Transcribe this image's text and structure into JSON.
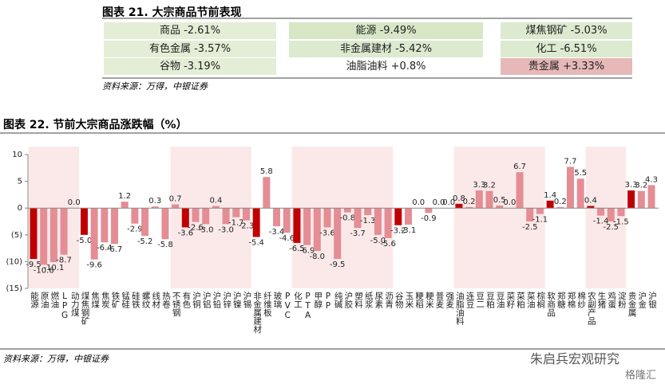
{
  "table_section": {
    "title": "图表 21. 大宗商品节前表现",
    "cells": [
      [
        {
          "text": "商品 -2.61%",
          "color": "#e4eed6"
        },
        {
          "text": "能源 -9.49%",
          "color": "#d7e7c6"
        },
        {
          "text": "煤焦钢矿 -5.03%",
          "color": "#dcead0"
        }
      ],
      [
        {
          "text": "有色金属 -3.57%",
          "color": "#e4eed6"
        },
        {
          "text": "非金属建材 -5.42%",
          "color": "#dcead0"
        },
        {
          "text": "化工 -6.51%",
          "color": "#dcead0"
        }
      ],
      [
        {
          "text": "谷物 -3.19%",
          "color": "#e4eed6"
        },
        {
          "text": "油脂油料 +0.8%",
          "color": "#ffffff"
        },
        {
          "text": "贵金属 +3.33%",
          "color": "#e6b8b8"
        }
      ]
    ],
    "source": "资料来源：万得，中银证券"
  },
  "chart_data": {
    "type": "bar",
    "title": "图表 22. 节前大宗商品涨跌幅（%）",
    "categories": [
      "能源",
      "原油",
      "燃油",
      "LPG",
      "动力煤",
      "煤焦钢矿",
      "焦煤",
      "焦炭",
      "铁矿",
      "锰硅",
      "硅铁",
      "螺纹",
      "线材",
      "热卷",
      "不锈钢",
      "有色",
      "沪铜",
      "沪铝",
      "沪铅",
      "沪锌",
      "沪镍",
      "沪锡",
      "非金属建材",
      "纤维板",
      "玻璃",
      "PVC",
      "化工",
      "PTA",
      "甲醇",
      "PP",
      "纯碱",
      "沪胶",
      "塑料",
      "纸浆",
      "尿素",
      "沥青",
      "谷物",
      "玉米",
      "粳稻",
      "粳米",
      "普麦",
      "强麦",
      "油脂油料",
      "连豆",
      "豆二",
      "豆粕",
      "豆油",
      "菜籽",
      "菜粕",
      "菜油",
      "棕榈",
      "软商品",
      "郑糖",
      "郑棉",
      "棉纱",
      "农副产品",
      "生猪",
      "鸡蛋",
      "淀粉",
      "贵金属",
      "沪金",
      "沪银"
    ],
    "values": [
      -9.5,
      -10.6,
      -10.1,
      -8.7,
      0.0,
      -5.0,
      -9.6,
      -6.4,
      -6.7,
      1.2,
      -2.9,
      -5.2,
      0.3,
      -5.8,
      0.7,
      -3.6,
      -2.6,
      -3.0,
      0.4,
      -3.0,
      -1.7,
      -2.3,
      -5.4,
      5.8,
      -3.4,
      -4.6,
      -6.5,
      -6.9,
      -8.0,
      -3.6,
      -9.5,
      -0.8,
      -3.7,
      -1.3,
      -5.0,
      -5.6,
      -3.2,
      -3.1,
      0.0,
      -0.9,
      0.0,
      0.0,
      0.8,
      0.2,
      3.3,
      3.2,
      0.5,
      0.0,
      6.7,
      -2.5,
      -1.1,
      1.4,
      0.2,
      7.7,
      5.5,
      0.4,
      -1.4,
      -2.5,
      -1.5,
      3.3,
      3.2,
      4.3
    ],
    "value_labels": [
      "-9.5",
      "-10.6",
      "-10.1",
      "-8.7",
      "0.0",
      "-5.0",
      "-9.6",
      "-6.4",
      "-6.7",
      "1.2",
      "-2.9",
      "-5.2",
      "0.3",
      "-5.8",
      "0.7",
      "-3.6",
      "-2.6",
      "-3.0",
      "0.4",
      "-3.0",
      "-1.7",
      "-2.3",
      "-5.4",
      "5.8",
      "-3.4",
      "-4.6",
      "-6.5",
      "-6.9",
      "-8.0",
      "-3.6",
      "-9.5",
      "-0.8",
      "-3.7",
      "-1.3",
      "-5.0",
      "-5.6",
      "-3.2",
      "-3.1",
      "0.0",
      "-0.9",
      "0.0",
      "0.0",
      "0.8",
      "0.2",
      "3.3",
      "3.2",
      "0.5",
      "0.0",
      "6.7",
      "-2.5",
      "-1.1",
      "1.4",
      "0.2",
      "7.7",
      "5.5",
      "0.4",
      "-1.4",
      "-2.5",
      "-1.5",
      "3.3",
      "3.2",
      "4.3"
    ],
    "colors": [
      "#c00000",
      "#e58d94",
      "#e58d94",
      "#e58d94",
      "#e58d94",
      "#c00000",
      "#e58d94",
      "#e58d94",
      "#e58d94",
      "#e58d94",
      "#e58d94",
      "#e58d94",
      "#e58d94",
      "#e58d94",
      "#e58d94",
      "#c00000",
      "#e58d94",
      "#e58d94",
      "#e58d94",
      "#e58d94",
      "#e58d94",
      "#e58d94",
      "#c00000",
      "#e58d94",
      "#e58d94",
      "#e58d94",
      "#c00000",
      "#e58d94",
      "#e58d94",
      "#e58d94",
      "#e58d94",
      "#e58d94",
      "#e58d94",
      "#e58d94",
      "#e58d94",
      "#e58d94",
      "#c00000",
      "#e58d94",
      "#e58d94",
      "#e58d94",
      "#e58d94",
      "#e58d94",
      "#c00000",
      "#e58d94",
      "#e58d94",
      "#e58d94",
      "#e58d94",
      "#e58d94",
      "#e58d94",
      "#e58d94",
      "#e58d94",
      "#c00000",
      "#e58d94",
      "#e58d94",
      "#e58d94",
      "#c00000",
      "#e58d94",
      "#e58d94",
      "#e58d94",
      "#c00000",
      "#e58d94",
      "#e58d94"
    ],
    "ylim": [
      -15,
      10
    ],
    "yticks": [
      {
        "value": -15,
        "label": "(15)"
      },
      {
        "value": -10,
        "label": "(10)"
      },
      {
        "value": -5,
        "label": "(5)"
      },
      0,
      5,
      10
    ],
    "grid": false,
    "source": "资料来源：万得，中银证券"
  },
  "watermark": {
    "name": "朱启兵宏观研究",
    "site": "格隆汇"
  }
}
